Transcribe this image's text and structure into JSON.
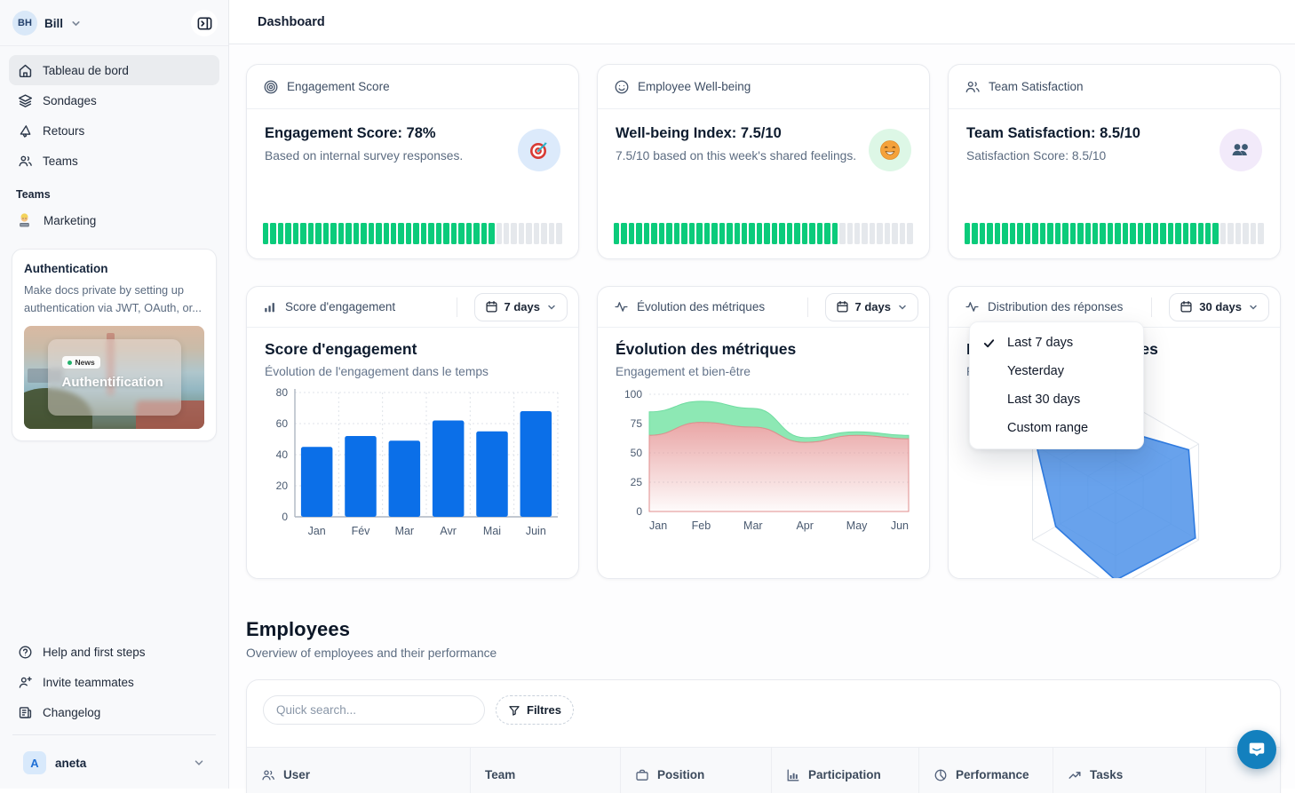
{
  "sidebar": {
    "workspace": {
      "avatar_initials": "BH",
      "name": "Bill"
    },
    "nav": [
      {
        "label": "Tableau de bord",
        "icon": "home",
        "active": true
      },
      {
        "label": "Sondages",
        "icon": "layers",
        "active": false
      },
      {
        "label": "Retours",
        "icon": "megaphone",
        "active": false
      },
      {
        "label": "Teams",
        "icon": "users",
        "active": false
      }
    ],
    "teams_section": {
      "label": "Teams",
      "items": [
        {
          "label": "Marketing",
          "icon": "technologist"
        }
      ]
    },
    "promo_card": {
      "title": "Authentication",
      "body": "Make docs private by setting up authentication via JWT, OAuth, or...",
      "image_badge": "News",
      "image_title": "Authentification"
    },
    "footer_nav": [
      {
        "label": "Help and first steps",
        "icon": "help-circle"
      },
      {
        "label": "Invite teammates",
        "icon": "user-plus"
      },
      {
        "label": "Changelog",
        "icon": "changelog"
      }
    ],
    "account": {
      "avatar_initial": "A",
      "name": "aneta"
    }
  },
  "header": {
    "title": "Dashboard"
  },
  "stat_cards": [
    {
      "header": "Engagement Score",
      "title": "Engagement Score: 78%",
      "subtitle": "Based on internal survey responses.",
      "badge": "dart-target",
      "badge_bg": "#DCEAFB",
      "progress_pct": 78
    },
    {
      "header": "Employee Well-being",
      "title": "Well-being Index: 7.5/10",
      "subtitle": "7.5/10 based on this week's shared feelings.",
      "badge": "smiling-face",
      "badge_bg": "#DDF7E6",
      "progress_pct": 75
    },
    {
      "header": "Team Satisfaction",
      "title": "Team Satisfaction: 8.5/10",
      "subtitle": "Satisfaction Score: 8.5/10",
      "badge": "two-people",
      "badge_bg": "#F2EAFA",
      "progress_pct": 85
    }
  ],
  "chart_cards": [
    {
      "header": "Score d'engagement",
      "range_button": "7 days",
      "title": "Score d'engagement",
      "subtitle": "Évolution de l'engagement dans le temps"
    },
    {
      "header": "Évolution des métriques",
      "range_button": "7 days",
      "title": "Évolution des métriques",
      "subtitle": "Engagement et bien-être"
    },
    {
      "header": "Distribution des réponses",
      "range_button": "30 days",
      "title": "Distribution des réponses",
      "subtitle": "Répartition par catégorie"
    }
  ],
  "range_menu": {
    "items": [
      {
        "label": "Last 7 days",
        "selected": true
      },
      {
        "label": "Yesterday",
        "selected": false
      },
      {
        "label": "Last 30 days",
        "selected": false
      },
      {
        "label": "Custom range",
        "selected": false
      }
    ]
  },
  "employees": {
    "title": "Employees",
    "subtitle": "Overview of employees and their performance",
    "search_placeholder": "Quick search...",
    "filters_label": "Filtres",
    "columns": [
      {
        "label": "User",
        "icon": "users"
      },
      {
        "label": "Team",
        "icon": "none"
      },
      {
        "label": "Position",
        "icon": "briefcase"
      },
      {
        "label": "Participation",
        "icon": "bar-chart"
      },
      {
        "label": "Performance",
        "icon": "pie-chart"
      },
      {
        "label": "Tasks",
        "icon": "trending-up"
      }
    ]
  },
  "chart_data": [
    {
      "type": "bar",
      "title": "Score d'engagement",
      "categories": [
        "Jan",
        "Fév",
        "Mar",
        "Avr",
        "Mai",
        "Juin"
      ],
      "values": [
        45,
        52,
        49,
        62,
        55,
        68
      ],
      "ylim": [
        0,
        80
      ],
      "yticks": [
        0,
        20,
        40,
        60,
        80
      ],
      "bar_color": "#0B6FE8",
      "grid": "dotted"
    },
    {
      "type": "area",
      "title": "Évolution des métriques",
      "x": [
        "Jan",
        "Feb",
        "Mar",
        "Apr",
        "May",
        "Jun"
      ],
      "series": [
        {
          "name": "engagement",
          "values": [
            85,
            94,
            88,
            63,
            68,
            65
          ],
          "color": "#8DE8B4",
          "edge": "#6FDCA0"
        },
        {
          "name": "bien-être",
          "values": [
            65,
            76,
            72,
            59,
            65,
            62
          ],
          "color": "#E79C9C",
          "edge": "#E08E8E"
        }
      ],
      "ylim": [
        0,
        100
      ],
      "yticks": [
        0,
        25,
        50,
        75,
        100
      ],
      "grid": "dotted",
      "legend": "none"
    },
    {
      "type": "radar",
      "title": "Distribution des réponses",
      "axes_count": 6,
      "values_relative": [
        0.66,
        0.88,
        0.96,
        0.92,
        0.72,
        0.95
      ],
      "max": 1,
      "rings": 3,
      "fill": "#4E92E9",
      "fill_opacity": 0.85,
      "stroke": "#2F7BE0",
      "grid_color": "#E2E6EC"
    }
  ],
  "colors": {
    "progress_green": "#0BCB7B",
    "progress_empty": "#E5E8EC",
    "accent_blue": "#0B6FE8",
    "axis_text": "#4A5A70",
    "axis_line": "#AEB6C2",
    "grid_line": "#DFE3E9",
    "chat_blue": "#1380BE"
  }
}
